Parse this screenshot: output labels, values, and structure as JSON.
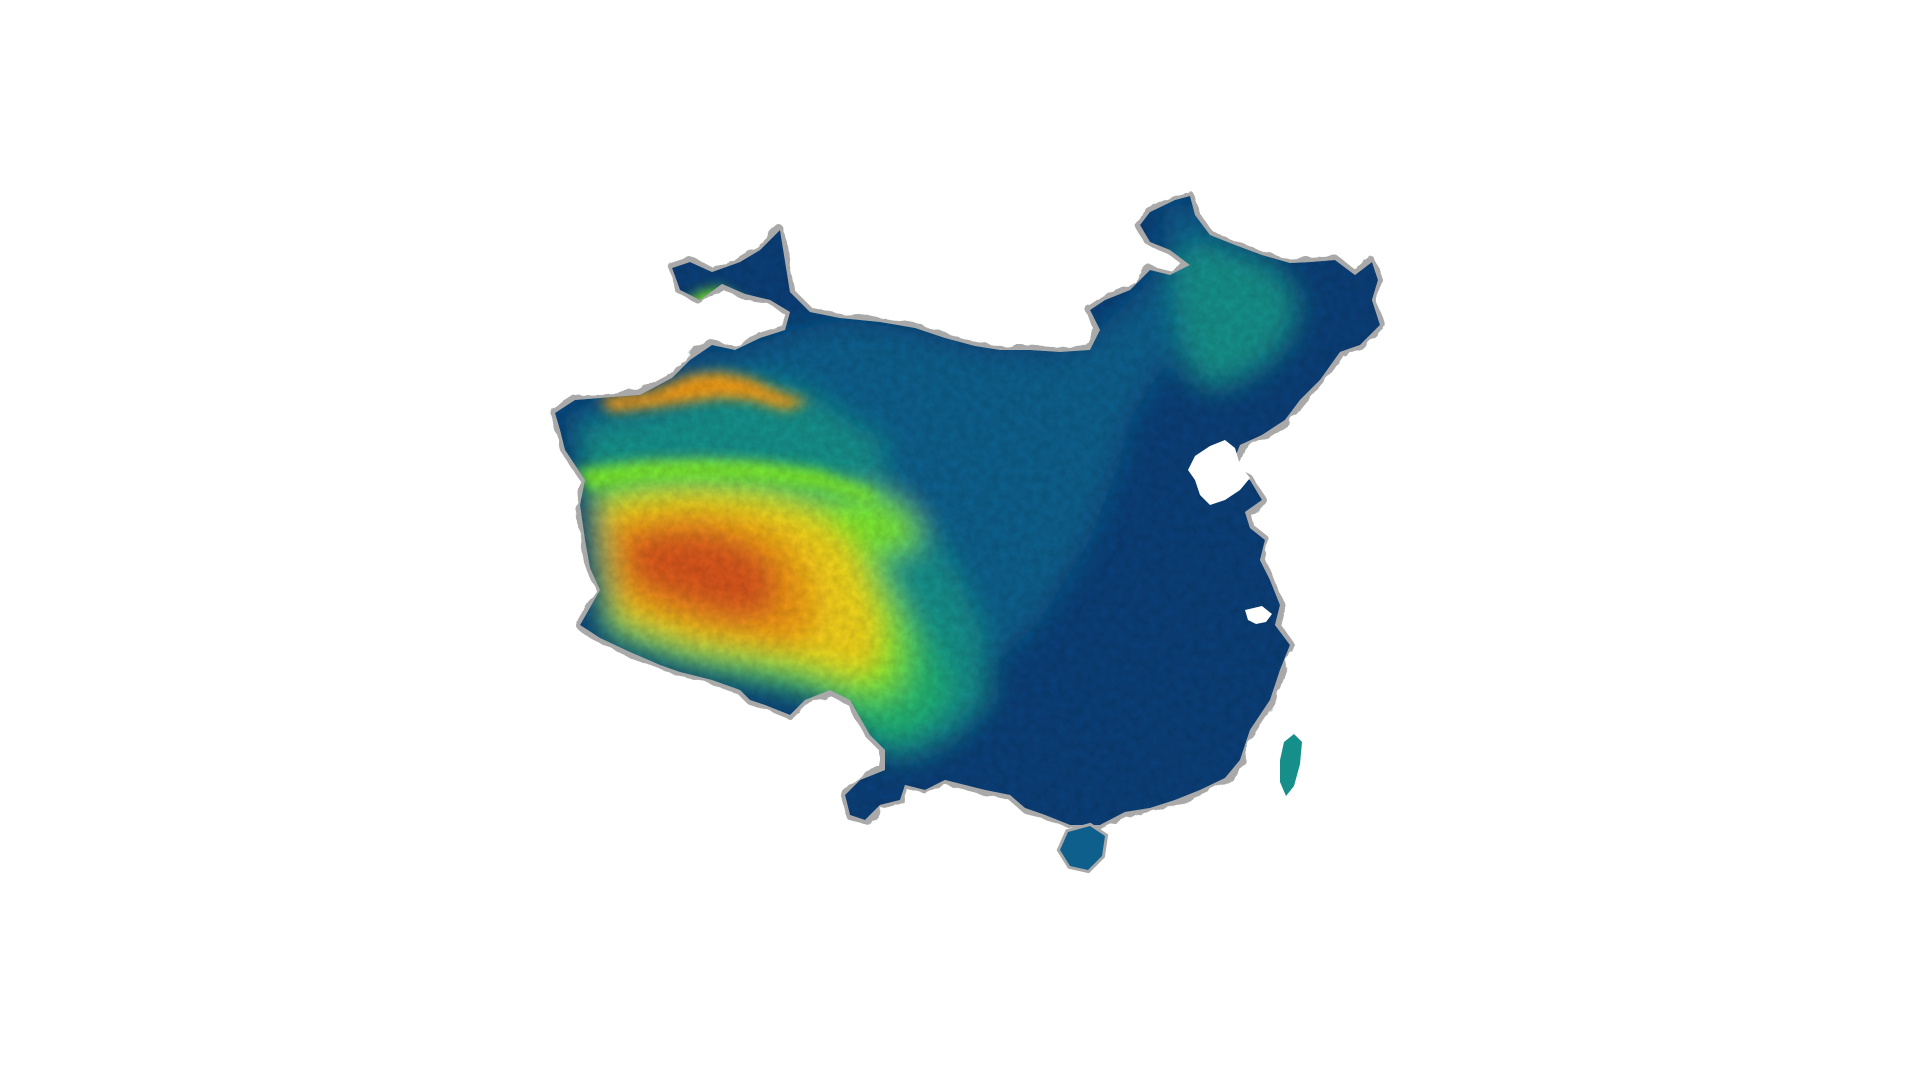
{
  "map": {
    "subject": "China",
    "style": "colored elevation relief map",
    "background_color": "#ffffff",
    "border_color": "#a9a9a9",
    "color_ramp": {
      "lowest": "#0b3f78",
      "low": "#0f5f8c",
      "mid_low": "#168f8a",
      "mid": "#22b56e",
      "mid_high": "#7be82e",
      "high": "#f2d21a",
      "higher": "#ef9b16",
      "highest": "#d8561c"
    },
    "water_color": "#ffffff",
    "labels_visible": false,
    "legend_visible": false
  }
}
